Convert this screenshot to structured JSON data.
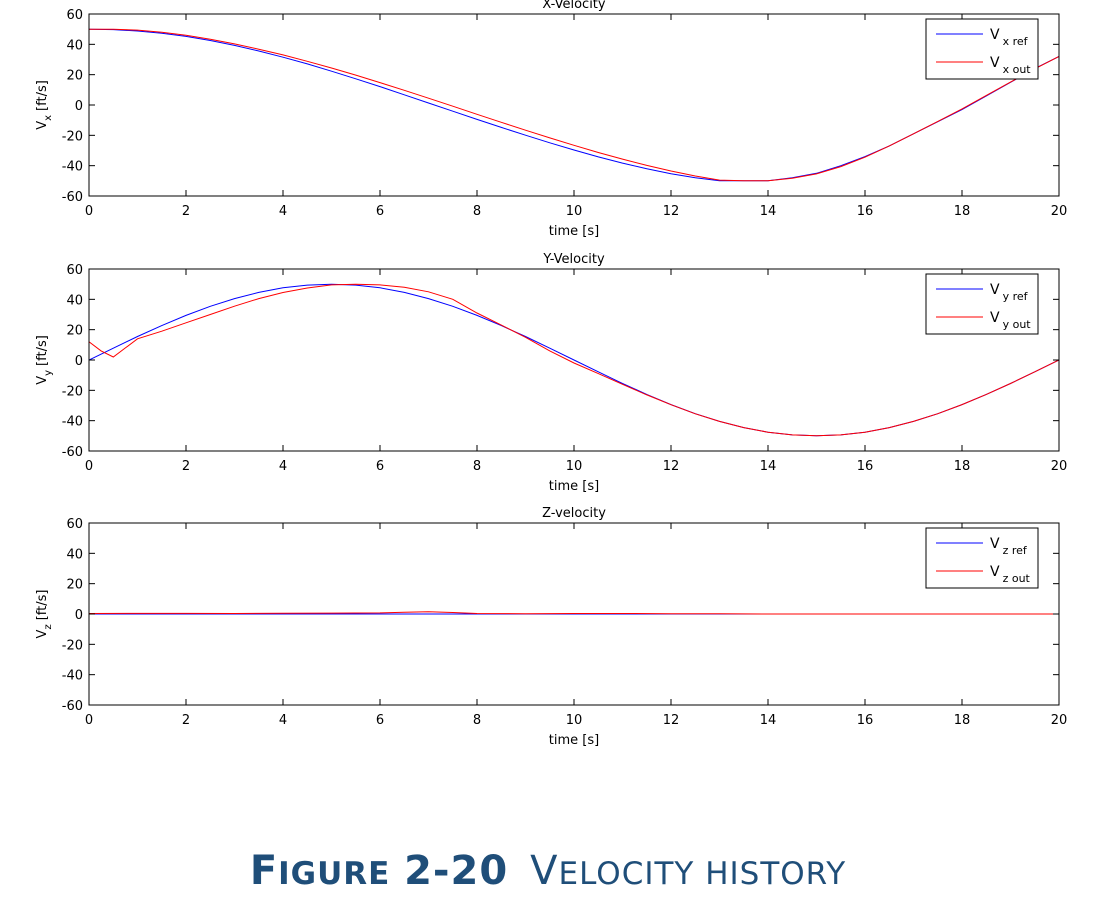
{
  "chart_data": [
    {
      "type": "line",
      "title": "X-Velocity",
      "xlabel": "time [s]",
      "ylabel_main": "V",
      "ylabel_sub": "x",
      "ylabel_unit": "[ft/s]",
      "xlim": [
        0,
        20
      ],
      "ylim": [
        -60,
        60
      ],
      "xticks": [
        0,
        2,
        4,
        6,
        8,
        10,
        12,
        14,
        16,
        18,
        20
      ],
      "yticks": [
        -60,
        -40,
        -20,
        0,
        20,
        40,
        60
      ],
      "grid": false,
      "legend_position": "top-right",
      "series": [
        {
          "name_main": "V",
          "name_sub": "x ref",
          "color": "#0000ff",
          "x": [
            0,
            0.5,
            1,
            1.5,
            2,
            2.5,
            3,
            3.5,
            4,
            4.5,
            5,
            5.5,
            6,
            6.5,
            7,
            7.5,
            8,
            8.5,
            9,
            9.5,
            10,
            10.5,
            11,
            11.5,
            12,
            12.5,
            13,
            13.5,
            14,
            14.5,
            15,
            15.5,
            16,
            16.5,
            17,
            17.5,
            18,
            18.5,
            19,
            19.5,
            20
          ],
          "values": [
            50,
            49.7,
            48.8,
            47.3,
            45.2,
            42.5,
            39.3,
            35.6,
            31.5,
            27.1,
            22.3,
            17.3,
            12.1,
            6.7,
            1.3,
            -4.1,
            -9.5,
            -14.8,
            -19.9,
            -24.9,
            -29.7,
            -34.2,
            -38.3,
            -42,
            -45.3,
            -48,
            -50,
            -50,
            -50,
            -48,
            -45,
            -40,
            -34,
            -27,
            -19,
            -11,
            -3,
            6,
            15,
            24,
            32
          ]
        },
        {
          "name_main": "V",
          "name_sub": "x out",
          "color": "#ff0000",
          "x": [
            0,
            0.5,
            1,
            1.5,
            2,
            2.5,
            3,
            3.5,
            4,
            4.5,
            5,
            5.5,
            6,
            6.5,
            7,
            7.5,
            8,
            8.5,
            9,
            9.5,
            10,
            10.5,
            11,
            11.5,
            12,
            12.5,
            13,
            13.5,
            14,
            14.5,
            15,
            15.5,
            16,
            16.5,
            17,
            17.5,
            18,
            18.5,
            19,
            19.5,
            20
          ],
          "values": [
            50,
            50,
            49.4,
            48,
            46,
            43.4,
            40.3,
            36.8,
            33,
            28.8,
            24.4,
            19.7,
            14.8,
            9.7,
            4.5,
            -0.8,
            -6.1,
            -11.4,
            -16.6,
            -21.7,
            -26.6,
            -31.3,
            -35.7,
            -39.8,
            -43.5,
            -46.8,
            -49.5,
            -50,
            -50,
            -48.3,
            -45.4,
            -40.6,
            -34.4,
            -27,
            -19,
            -10.8,
            -2.6,
            6.3,
            15.1,
            23.9,
            32
          ]
        }
      ]
    },
    {
      "type": "line",
      "title": "Y-Velocity",
      "xlabel": "time [s]",
      "ylabel_main": "V",
      "ylabel_sub": "y",
      "ylabel_unit": "[ft/s]",
      "xlim": [
        0,
        20
      ],
      "ylim": [
        -60,
        60
      ],
      "xticks": [
        0,
        2,
        4,
        6,
        8,
        10,
        12,
        14,
        16,
        18,
        20
      ],
      "yticks": [
        -60,
        -40,
        -20,
        0,
        20,
        40,
        60
      ],
      "grid": false,
      "legend_position": "top-right",
      "series": [
        {
          "name_main": "V",
          "name_sub": "y ref",
          "color": "#0000ff",
          "x": [
            0,
            0.5,
            1,
            1.5,
            2,
            2.5,
            3,
            3.5,
            4,
            4.5,
            5,
            5.5,
            6,
            6.5,
            7,
            7.5,
            8,
            8.5,
            9,
            9.5,
            10,
            10.5,
            11,
            11.5,
            12,
            12.5,
            13,
            13.5,
            14,
            14.5,
            15,
            15.5,
            16,
            16.5,
            17,
            17.5,
            18,
            18.5,
            19,
            19.5,
            20
          ],
          "values": [
            0,
            7.8,
            15.5,
            22.7,
            29.4,
            35.4,
            40.5,
            44.6,
            47.6,
            49.4,
            50,
            49.4,
            47.6,
            44.6,
            40.5,
            35.4,
            29.4,
            22.7,
            15.5,
            7.8,
            0,
            -7.8,
            -15.5,
            -22.7,
            -29.4,
            -35.4,
            -40.5,
            -44.6,
            -47.6,
            -49.4,
            -50,
            -49.4,
            -47.6,
            -44.6,
            -40.5,
            -35.4,
            -29.4,
            -22.7,
            -15.5,
            -7.8,
            0
          ]
        },
        {
          "name_main": "V",
          "name_sub": "y out",
          "color": "#ff0000",
          "x": [
            0,
            0.25,
            0.5,
            0.75,
            1,
            1.5,
            2,
            2.5,
            3,
            3.5,
            4,
            4.5,
            5,
            5.5,
            6,
            6.5,
            7,
            7.5,
            8,
            8.5,
            9,
            9.5,
            10,
            10.5,
            11,
            11.5,
            12,
            12.5,
            13,
            13.5,
            14,
            14.5,
            15,
            15.5,
            16,
            16.5,
            17,
            17.5,
            18,
            18.5,
            19,
            19.5,
            20
          ],
          "values": [
            12,
            6,
            2,
            8,
            14,
            19,
            24.5,
            30,
            35.5,
            40.5,
            44.5,
            47.5,
            49.5,
            50,
            49.5,
            48,
            45,
            40,
            31,
            23,
            15,
            6,
            -2,
            -9,
            -16,
            -23,
            -29.5,
            -35.5,
            -40.5,
            -44.6,
            -47.6,
            -49.4,
            -50,
            -49.4,
            -47.6,
            -44.6,
            -40.5,
            -35.4,
            -29.4,
            -22.7,
            -15.5,
            -7.8,
            0
          ]
        }
      ]
    },
    {
      "type": "line",
      "title": "Z-velocity",
      "xlabel": "time [s]",
      "ylabel_main": "V",
      "ylabel_sub": "z",
      "ylabel_unit": "[ft/s]",
      "xlim": [
        0,
        20
      ],
      "ylim": [
        -60,
        60
      ],
      "xticks": [
        0,
        2,
        4,
        6,
        8,
        10,
        12,
        14,
        16,
        18,
        20
      ],
      "yticks": [
        -60,
        -40,
        -20,
        0,
        20,
        40,
        60
      ],
      "grid": false,
      "legend_position": "top-right",
      "series": [
        {
          "name_main": "V",
          "name_sub": "z ref",
          "color": "#0000ff",
          "x": [
            0,
            2,
            4,
            6,
            8,
            10,
            12,
            14,
            16,
            18,
            20
          ],
          "values": [
            0,
            0,
            0,
            0,
            0,
            0,
            0,
            0,
            0,
            0,
            0
          ]
        },
        {
          "name_main": "V",
          "name_sub": "z out",
          "color": "#ff0000",
          "x": [
            0,
            1,
            2,
            3,
            4,
            5,
            6,
            6.5,
            7,
            7.5,
            8,
            9,
            10,
            11,
            12,
            13,
            14,
            16,
            18,
            20
          ],
          "values": [
            0.3,
            0.4,
            0.4,
            0.3,
            0.5,
            0.6,
            0.7,
            1.2,
            1.5,
            1,
            0.3,
            0.2,
            0.3,
            0.3,
            0.2,
            0.1,
            0,
            0,
            0,
            0
          ]
        }
      ]
    }
  ],
  "caption": {
    "f_big": "F",
    "f_small": "IGURE",
    "number": "2-20",
    "v_big": "V",
    "v_small": "ELOCITY HISTORY"
  }
}
